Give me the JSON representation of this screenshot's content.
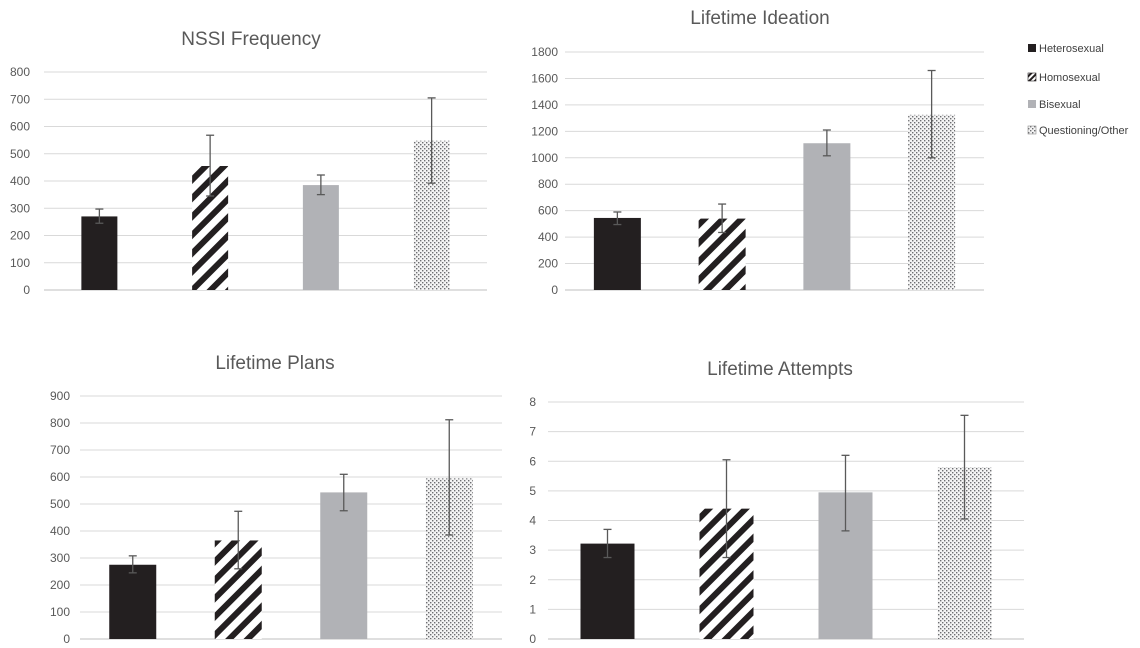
{
  "colors": {
    "heterosexual": "#231f20",
    "homosexual_stripe": "#231f20",
    "bisexual": "#b1b2b6",
    "questioning_dots": "#6d6e71",
    "gridline": "#d9d9d9",
    "errorbar": "#595959",
    "title": "#595959",
    "ticks": "#595959"
  },
  "legend": {
    "placement": "right",
    "items": [
      {
        "label": "Heterosexual",
        "pattern": "solid-black"
      },
      {
        "label": "Homosexual",
        "pattern": "diagonal-stripes"
      },
      {
        "label": "Bisexual",
        "pattern": "solid-gray"
      },
      {
        "label": "Questioning/Other",
        "pattern": "dots"
      }
    ]
  },
  "chart_data": [
    {
      "type": "bar",
      "title": "NSSI Frequency",
      "categories": [
        "Heterosexual",
        "Homosexual",
        "Bisexual",
        "Questioning/Other"
      ],
      "values": [
        270,
        455,
        385,
        548
      ],
      "errors": [
        [
          245,
          297
        ],
        [
          345,
          568
        ],
        [
          350,
          422
        ],
        [
          392,
          705
        ]
      ],
      "ylim": [
        0,
        800
      ],
      "yticks": [
        0,
        100,
        200,
        300,
        400,
        500,
        600,
        700,
        800
      ],
      "grid": true
    },
    {
      "type": "bar",
      "title": "Lifetime Ideation",
      "categories": [
        "Heterosexual",
        "Homosexual",
        "Bisexual",
        "Questioning/Other"
      ],
      "values": [
        545,
        540,
        1110,
        1325
      ],
      "errors": [
        [
          495,
          590
        ],
        [
          435,
          650
        ],
        [
          1015,
          1210
        ],
        [
          1000,
          1660
        ]
      ],
      "ylim": [
        0,
        1800
      ],
      "yticks": [
        0,
        200,
        400,
        600,
        800,
        1000,
        1200,
        1400,
        1600,
        1800
      ],
      "grid": true
    },
    {
      "type": "bar",
      "title": "Lifetime Plans",
      "categories": [
        "Heterosexual",
        "Homosexual",
        "Bisexual",
        "Questioning/Other"
      ],
      "values": [
        275,
        365,
        543,
        595
      ],
      "errors": [
        [
          245,
          308
        ],
        [
          260,
          473
        ],
        [
          475,
          610
        ],
        [
          385,
          812
        ]
      ],
      "ylim": [
        0,
        900
      ],
      "yticks": [
        0,
        100,
        200,
        300,
        400,
        500,
        600,
        700,
        800,
        900
      ],
      "grid": true
    },
    {
      "type": "bar",
      "title": "Lifetime Attempts",
      "categories": [
        "Heterosexual",
        "Homosexual",
        "Bisexual",
        "Questioning/Other"
      ],
      "values": [
        3.22,
        4.4,
        4.95,
        5.8
      ],
      "errors": [
        [
          2.75,
          3.7
        ],
        [
          2.75,
          6.05
        ],
        [
          3.65,
          6.2
        ],
        [
          4.05,
          7.55
        ]
      ],
      "ylim": [
        0,
        8
      ],
      "yticks": [
        0,
        1,
        2,
        3,
        4,
        5,
        6,
        7,
        8
      ],
      "grid": true
    }
  ]
}
